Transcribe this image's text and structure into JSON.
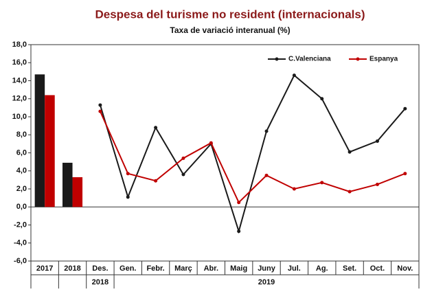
{
  "chart_data": {
    "type": "bar_line",
    "title": "Despesa del turisme no resident (internacionals)",
    "subtitle": "Taxa de variació interanual (%)",
    "categories": [
      "2017",
      "2018",
      "Des.",
      "Gen.",
      "Febr.",
      "Març",
      "Abr.",
      "Maig",
      "Juny",
      "Jul.",
      "Ag.",
      "Set.",
      "Oct.",
      "Nov."
    ],
    "x_group_labels": [
      null,
      null,
      "2018",
      null,
      null,
      null,
      null,
      null,
      "2019",
      null,
      null,
      null,
      null,
      null
    ],
    "series": [
      {
        "name": "C.Valenciana",
        "color": "#1a1a1a",
        "bar_values": [
          14.7,
          4.9,
          null,
          null,
          null,
          null,
          null,
          null,
          null,
          null,
          null,
          null,
          null,
          null
        ],
        "values": [
          null,
          null,
          11.3,
          1.1,
          8.8,
          3.6,
          7.0,
          -2.7,
          8.4,
          14.6,
          12.0,
          6.1,
          7.3,
          10.9
        ]
      },
      {
        "name": "Espanya",
        "color": "#c00000",
        "bar_values": [
          12.4,
          3.3,
          null,
          null,
          null,
          null,
          null,
          null,
          null,
          null,
          null,
          null,
          null,
          null
        ],
        "values": [
          null,
          null,
          10.6,
          3.7,
          2.9,
          5.4,
          7.1,
          0.5,
          3.5,
          2.0,
          2.7,
          1.7,
          2.5,
          3.7
        ]
      }
    ],
    "ylim": [
      -6,
      18
    ],
    "yticks": [
      {
        "value": -6,
        "label": "-6,0"
      },
      {
        "value": -4,
        "label": "-4,0"
      },
      {
        "value": -2,
        "label": "-2,0"
      },
      {
        "value": 0,
        "label": "0,0"
      },
      {
        "value": 2,
        "label": "2,0"
      },
      {
        "value": 4,
        "label": "4,0"
      },
      {
        "value": 6,
        "label": "6,0"
      },
      {
        "value": 8,
        "label": "8,0"
      },
      {
        "value": 10,
        "label": "10,0"
      },
      {
        "value": 12,
        "label": "12,0"
      },
      {
        "value": 14,
        "label": "14,0"
      },
      {
        "value": 16,
        "label": "16,0"
      },
      {
        "value": 18,
        "label": "18,0"
      }
    ],
    "legend": "top-right"
  }
}
